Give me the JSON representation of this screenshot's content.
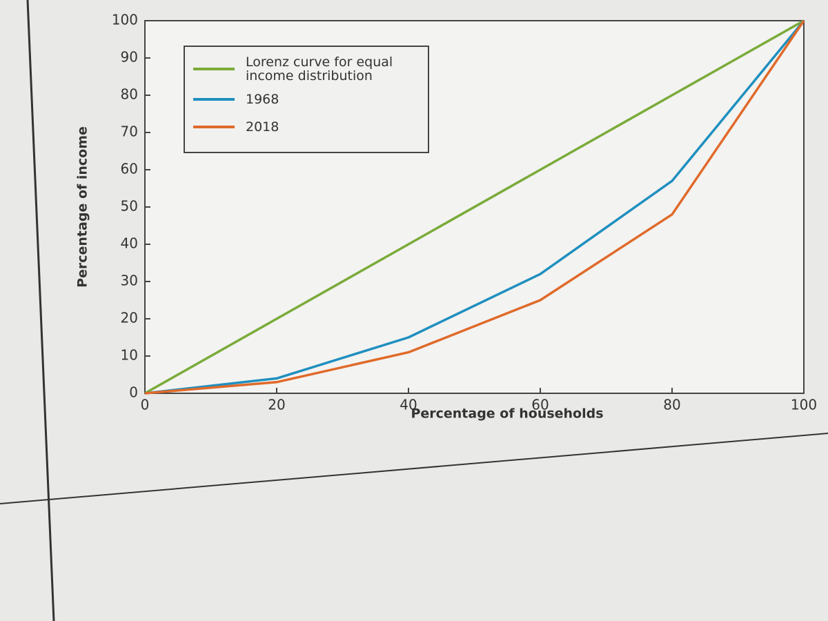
{
  "chart_data": {
    "type": "line",
    "xlabel": "Percentage of households",
    "ylabel": "Percentage of income",
    "x": [
      0,
      20,
      40,
      60,
      80,
      100
    ],
    "series": [
      {
        "name": "Lorenz curve for equal income distribution",
        "color": "#7aab3a",
        "values": [
          0,
          20,
          40,
          60,
          80,
          100
        ]
      },
      {
        "name": "1968",
        "color": "#1f8fbf",
        "values": [
          0,
          4,
          15,
          32,
          57,
          100
        ]
      },
      {
        "name": "2018",
        "color": "#e06a2a",
        "values": [
          0,
          3,
          11,
          25,
          48,
          100
        ]
      }
    ],
    "xlim": [
      0,
      100
    ],
    "ylim": [
      0,
      100
    ],
    "xticks": [
      0,
      20,
      40,
      60,
      80,
      100
    ],
    "yticks": [
      0,
      10,
      20,
      30,
      40,
      50,
      60,
      70,
      80,
      90,
      100
    ],
    "grid": false,
    "legend": "upper left"
  }
}
